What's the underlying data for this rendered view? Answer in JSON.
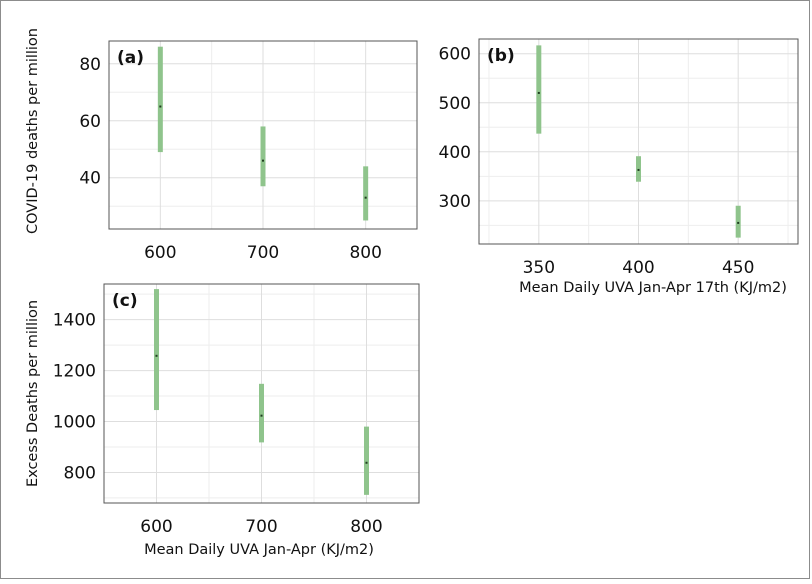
{
  "colors": {
    "bar": "#8fc48c",
    "point": "#1f3d1f",
    "grid_major": "#dedede",
    "grid_minor": "#eeeeee",
    "panel_border": "#555555",
    "text": "#111111"
  },
  "chart_data": [
    {
      "type": "errorbar",
      "panel_label": "(a)",
      "xlabel": "",
      "ylabel": "COVID-19 deaths per million",
      "x": [
        600,
        700,
        800
      ],
      "y": [
        65,
        46,
        33
      ],
      "y_low": [
        49,
        37,
        25
      ],
      "y_high": [
        86,
        58,
        44
      ],
      "xticks": [
        "600",
        "700",
        "800"
      ],
      "yticks": [
        "40",
        "60",
        "80"
      ],
      "xlim": [
        550,
        850
      ],
      "ylim": [
        22,
        88
      ],
      "grid": true
    },
    {
      "type": "errorbar",
      "panel_label": "(b)",
      "xlabel": "Mean Daily UVA Jan-Apr 17th (KJ/m2)",
      "ylabel": "",
      "x": [
        350,
        400,
        450
      ],
      "y": [
        520,
        363,
        255
      ],
      "y_low": [
        437,
        339,
        225
      ],
      "y_high": [
        617,
        391,
        290
      ],
      "xticks": [
        "350",
        "400",
        "450"
      ],
      "yticks": [
        "300",
        "400",
        "500",
        "600"
      ],
      "xlim": [
        320,
        480
      ],
      "ylim": [
        212,
        630
      ],
      "grid": true
    },
    {
      "type": "errorbar",
      "panel_label": "(c)",
      "xlabel": "Mean Daily UVA Jan-Apr (KJ/m2)",
      "ylabel": "Excess Deaths per million",
      "x": [
        600,
        700,
        800
      ],
      "y": [
        1258,
        1023,
        838
      ],
      "y_low": [
        1045,
        918,
        712
      ],
      "y_high": [
        1520,
        1148,
        980
      ],
      "xticks": [
        "600",
        "700",
        "800"
      ],
      "yticks": [
        "800",
        "1000",
        "1200",
        "1400"
      ],
      "xlim": [
        550,
        850
      ],
      "ylim": [
        680,
        1540
      ],
      "grid": true
    }
  ]
}
